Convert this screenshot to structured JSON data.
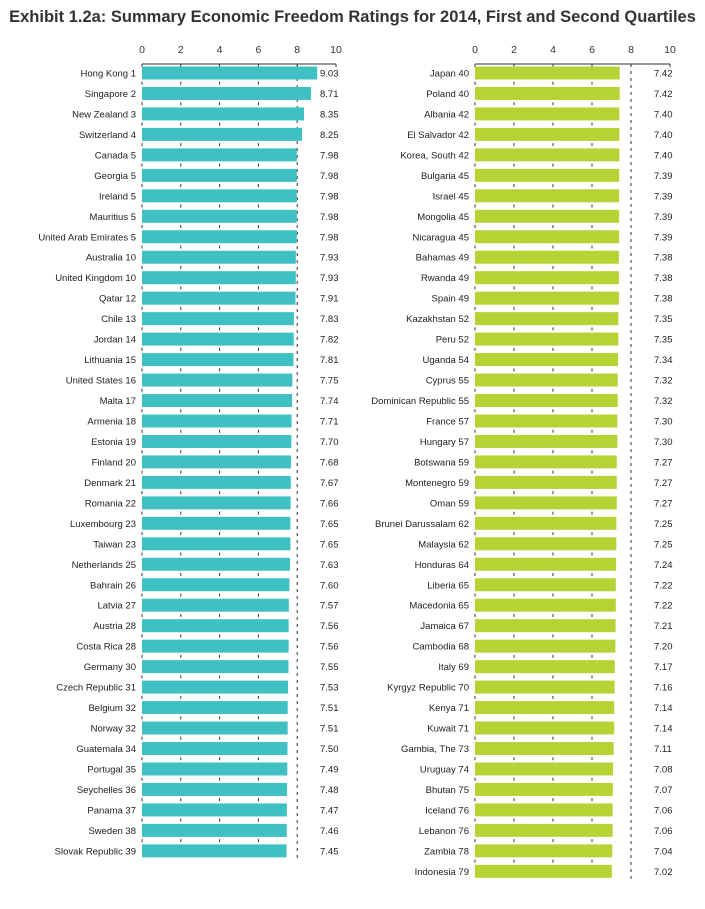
{
  "chart_data": [
    {
      "type": "bar",
      "orientation": "horizontal",
      "title": "Exhibit 1.2a: Summary Economic Freedom Ratings for 2014, First and Second Quartiles",
      "panel": "first-quartile",
      "xlim": [
        0,
        10
      ],
      "xticks": [
        "0",
        "2",
        "4",
        "6",
        "8",
        "10"
      ],
      "reference_line": 8,
      "color": "#3fc1c3",
      "categories": [
        "Hong Kong 1",
        "Singapore 2",
        "New Zealand 3",
        "Switzerland 4",
        "Canada 5",
        "Georgia 5",
        "Ireland 5",
        "Mauritius 5",
        "United Arab Emirates 5",
        "Australia 10",
        "United Kingdom 10",
        "Qatar 12",
        "Chile 13",
        "Jordan 14",
        "Lithuania 15",
        "United States 16",
        "Malta 17",
        "Armenia 18",
        "Estonia 19",
        "Finland 20",
        "Denmark 21",
        "Romania 22",
        "Luxembourg 23",
        "Taiwan 23",
        "Netherlands 25",
        "Bahrain 26",
        "Latvia 27",
        "Austria 28",
        "Costa Rica 28",
        "Germany 30",
        "Czech Republic 31",
        "Belgium 32",
        "Norway 32",
        "Guatemala 34",
        "Portugal 35",
        "Seychelles 36",
        "Panama 37",
        "Sweden 38",
        "Slovak Republic 39"
      ],
      "values": [
        9.03,
        8.71,
        8.35,
        8.25,
        7.98,
        7.98,
        7.98,
        7.98,
        7.98,
        7.93,
        7.93,
        7.91,
        7.83,
        7.82,
        7.81,
        7.75,
        7.74,
        7.71,
        7.7,
        7.68,
        7.67,
        7.66,
        7.65,
        7.65,
        7.63,
        7.6,
        7.57,
        7.56,
        7.56,
        7.55,
        7.53,
        7.51,
        7.51,
        7.5,
        7.49,
        7.48,
        7.47,
        7.46,
        7.45
      ],
      "labels": [
        "9.03",
        "8.71",
        "8.35",
        "8.25",
        "7.98",
        "7.98",
        "7.98",
        "7.98",
        "7.98",
        "7.93",
        "7.93",
        "7.91",
        "7.83",
        "7.82",
        "7.81",
        "7.75",
        "7.74",
        "7.71",
        "7.70",
        "7.68",
        "7.67",
        "7.66",
        "7.65",
        "7.65",
        "7.63",
        "7.60",
        "7.57",
        "7.56",
        "7.56",
        "7.55",
        "7.53",
        "7.51",
        "7.51",
        "7.50",
        "7.49",
        "7.48",
        "7.47",
        "7.46",
        "7.45"
      ]
    },
    {
      "type": "bar",
      "orientation": "horizontal",
      "panel": "second-quartile",
      "xlim": [
        0,
        10
      ],
      "xticks": [
        "0",
        "2",
        "4",
        "6",
        "8",
        "10"
      ],
      "reference_line": 8,
      "color": "#b5d334",
      "categories": [
        "Japan 40",
        "Poland 40",
        "Albania 42",
        "El Salvador 42",
        "Korea, South 42",
        "Bulgaria 45",
        "Israel 45",
        "Mongolia 45",
        "Nicaragua 45",
        "Bahamas 49",
        "Rwanda 49",
        "Spain 49",
        "Kazakhstan 52",
        "Peru 52",
        "Uganda 54",
        "Cyprus 55",
        "Dominican Republic 55",
        "France 57",
        "Hungary 57",
        "Botswana 59",
        "Montenegro 59",
        "Oman 59",
        "Brunei Darussalam 62",
        "Malaysia 62",
        "Honduras 64",
        "Liberia 65",
        "Macedonia 65",
        "Jamaica 67",
        "Cambodia 68",
        "Italy 69",
        "Kyrgyz Republic 70",
        "Kenya 71",
        "Kuwait 71",
        "Gambia, The 73",
        "Uruguay 74",
        "Bhutan 75",
        "Iceland 76",
        "Lebanon 76",
        "Zambia 78",
        "Indonesia 79"
      ],
      "values": [
        7.42,
        7.42,
        7.4,
        7.4,
        7.4,
        7.39,
        7.39,
        7.39,
        7.39,
        7.38,
        7.38,
        7.38,
        7.35,
        7.35,
        7.34,
        7.32,
        7.32,
        7.3,
        7.3,
        7.27,
        7.27,
        7.27,
        7.25,
        7.25,
        7.24,
        7.22,
        7.22,
        7.21,
        7.2,
        7.17,
        7.16,
        7.14,
        7.14,
        7.11,
        7.08,
        7.07,
        7.06,
        7.06,
        7.04,
        7.02
      ],
      "labels": [
        "7.42",
        "7.42",
        "7.40",
        "7.40",
        "7.40",
        "7.39",
        "7.39",
        "7.39",
        "7.39",
        "7.38",
        "7.38",
        "7.38",
        "7.35",
        "7.35",
        "7.34",
        "7.32",
        "7.32",
        "7.30",
        "7.30",
        "7.27",
        "7.27",
        "7.27",
        "7.25",
        "7.25",
        "7.24",
        "7.22",
        "7.22",
        "7.21",
        "7.20",
        "7.17",
        "7.16",
        "7.14",
        "7.14",
        "7.11",
        "7.08",
        "7.07",
        "7.06",
        "7.06",
        "7.04",
        "7.02"
      ]
    }
  ]
}
